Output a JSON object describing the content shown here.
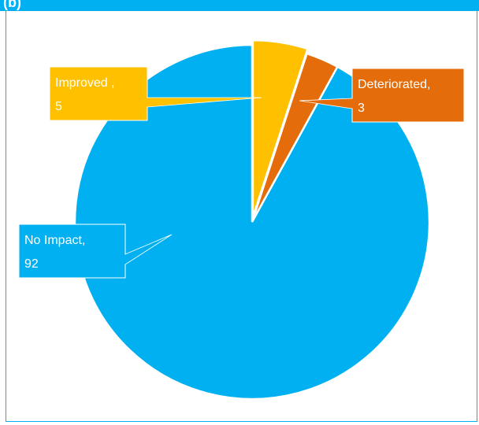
{
  "header": {
    "title": "(b)"
  },
  "chart_data": {
    "type": "pie",
    "title": "",
    "slices": [
      {
        "label": "Improved",
        "value": 5,
        "color": "#ffc000",
        "text_line1": "Improved ,",
        "text_line2": "5"
      },
      {
        "label": "Deteriorated",
        "value": 3,
        "color": "#e46c0a",
        "text_line1": "Deteriorated,",
        "text_line2": "3"
      },
      {
        "label": "No Impact",
        "value": 92,
        "color": "#00b0f0",
        "text_line1": "No Impact,",
        "text_line2": "92"
      }
    ],
    "exploded": "Improved",
    "labels": "callouts with leader lines"
  }
}
